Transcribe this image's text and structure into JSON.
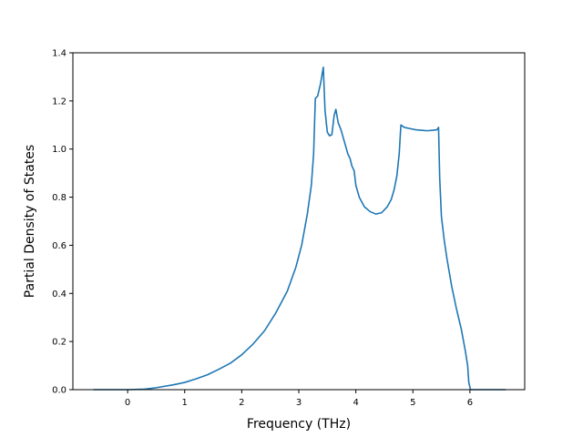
{
  "chart_data": {
    "type": "line",
    "xlabel": "Frequency (THz)",
    "ylabel": "Partial Density of States",
    "xlim": [
      -0.96,
      6.96
    ],
    "ylim": [
      0.0,
      1.4
    ],
    "xticks": [
      0,
      1,
      2,
      3,
      4,
      5,
      6
    ],
    "yticks": [
      "0.0",
      "0.2",
      "0.4",
      "0.6",
      "0.8",
      "1.0",
      "1.2",
      "1.4"
    ],
    "grid": false,
    "series": [
      {
        "color": "#1f77b4",
        "points": [
          [
            -0.6,
            0.0
          ],
          [
            0.0,
            0.0
          ],
          [
            0.3,
            0.002
          ],
          [
            0.5,
            0.008
          ],
          [
            0.8,
            0.02
          ],
          [
            1.0,
            0.03
          ],
          [
            1.2,
            0.045
          ],
          [
            1.4,
            0.062
          ],
          [
            1.6,
            0.085
          ],
          [
            1.8,
            0.11
          ],
          [
            2.0,
            0.145
          ],
          [
            2.2,
            0.19
          ],
          [
            2.4,
            0.245
          ],
          [
            2.6,
            0.32
          ],
          [
            2.8,
            0.41
          ],
          [
            2.95,
            0.51
          ],
          [
            3.05,
            0.6
          ],
          [
            3.15,
            0.73
          ],
          [
            3.22,
            0.85
          ],
          [
            3.26,
            0.98
          ],
          [
            3.29,
            1.21
          ],
          [
            3.33,
            1.22
          ],
          [
            3.38,
            1.27
          ],
          [
            3.43,
            1.34
          ],
          [
            3.46,
            1.16
          ],
          [
            3.5,
            1.07
          ],
          [
            3.54,
            1.055
          ],
          [
            3.58,
            1.06
          ],
          [
            3.62,
            1.14
          ],
          [
            3.65,
            1.165
          ],
          [
            3.69,
            1.11
          ],
          [
            3.74,
            1.08
          ],
          [
            3.8,
            1.03
          ],
          [
            3.86,
            0.98
          ],
          [
            3.9,
            0.96
          ],
          [
            3.93,
            0.93
          ],
          [
            3.97,
            0.91
          ],
          [
            4.0,
            0.85
          ],
          [
            4.06,
            0.8
          ],
          [
            4.15,
            0.76
          ],
          [
            4.25,
            0.74
          ],
          [
            4.35,
            0.73
          ],
          [
            4.45,
            0.735
          ],
          [
            4.55,
            0.76
          ],
          [
            4.62,
            0.79
          ],
          [
            4.67,
            0.83
          ],
          [
            4.72,
            0.89
          ],
          [
            4.76,
            0.98
          ],
          [
            4.79,
            1.1
          ],
          [
            4.85,
            1.09
          ],
          [
            4.95,
            1.085
          ],
          [
            5.05,
            1.08
          ],
          [
            5.15,
            1.078
          ],
          [
            5.25,
            1.076
          ],
          [
            5.35,
            1.078
          ],
          [
            5.42,
            1.08
          ],
          [
            5.45,
            1.09
          ],
          [
            5.47,
            0.88
          ],
          [
            5.5,
            0.72
          ],
          [
            5.55,
            0.62
          ],
          [
            5.6,
            0.54
          ],
          [
            5.68,
            0.43
          ],
          [
            5.76,
            0.34
          ],
          [
            5.85,
            0.25
          ],
          [
            5.92,
            0.16
          ],
          [
            5.96,
            0.1
          ],
          [
            5.98,
            0.03
          ],
          [
            6.01,
            0.0
          ],
          [
            6.63,
            0.0
          ]
        ]
      }
    ]
  }
}
